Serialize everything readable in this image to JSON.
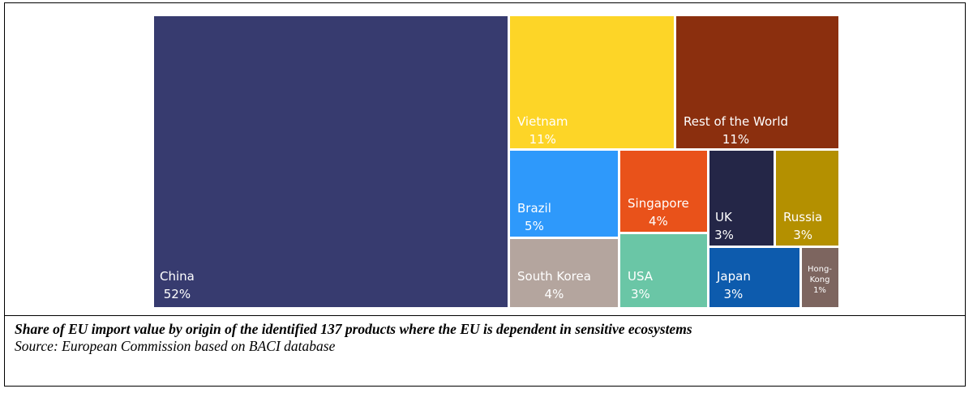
{
  "chart_data": {
    "type": "treemap",
    "title": "",
    "items": [
      {
        "label": "China",
        "value_label": "52%",
        "value": 52,
        "color": "#373B6F"
      },
      {
        "label": "Vietnam",
        "value_label": "11%",
        "value": 11,
        "color": "#FDD527"
      },
      {
        "label": "Rest of the World",
        "value_label": "11%",
        "value": 11,
        "color": "#8B2F0E"
      },
      {
        "label": "Brazil",
        "value_label": "5%",
        "value": 5,
        "color": "#2E99FB"
      },
      {
        "label": "Singapore",
        "value_label": "4%",
        "value": 4,
        "color": "#E9521A"
      },
      {
        "label": "UK",
        "value_label": "3%",
        "value": 3,
        "color": "#242647"
      },
      {
        "label": "Russia",
        "value_label": "3%",
        "value": 3,
        "color": "#B49000"
      },
      {
        "label": "South Korea",
        "value_label": "4%",
        "value": 4,
        "color": "#B4A59E"
      },
      {
        "label": "USA",
        "value_label": "3%",
        "value": 3,
        "color": "#6AC6A6"
      },
      {
        "label": "Japan",
        "value_label": "3%",
        "value": 3,
        "color": "#0D5BAD"
      },
      {
        "label": "Hong-Kong",
        "value_label": "1%",
        "value": 1,
        "color": "#7D655F"
      }
    ]
  },
  "caption": {
    "title": "Share of EU import value by origin of the identified 137 products where the EU is dependent in sensitive ecosystems",
    "source": "Source: European Commission based on BACI database"
  }
}
